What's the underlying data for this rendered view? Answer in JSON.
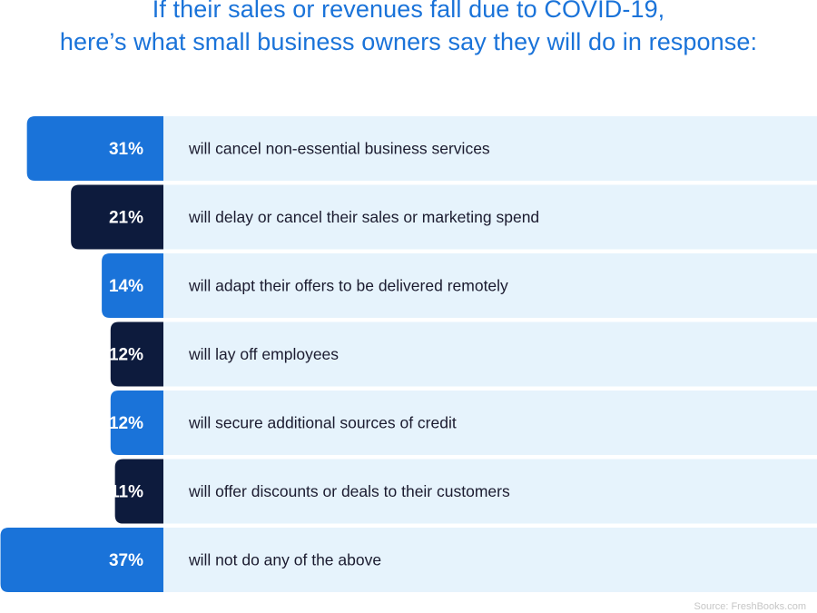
{
  "title_line1": "If their sales or revenues fall due to COVID-19,",
  "title_line2": "here’s what small business owners say they will do in response:",
  "source": "Source: FreshBooks.com",
  "colors": {
    "blue": "#1a73d9",
    "navy": "#0d1b3d",
    "row_bg": "#e6f3fc",
    "title": "#1a73d9"
  },
  "chart_data": {
    "type": "bar",
    "orientation": "horizontal",
    "value_suffix": "%",
    "categories": [
      "will cancel non-essential business services",
      "will delay or cancel their sales or marketing spend",
      "will adapt their offers to be delivered remotely",
      "will lay off employees",
      "will secure additional sources of credit",
      "will offer discounts or deals to their customers",
      "will not do any of the above"
    ],
    "values": [
      31,
      21,
      14,
      12,
      12,
      11,
      37
    ],
    "bar_colors": [
      "blue",
      "navy",
      "blue",
      "navy",
      "blue",
      "navy",
      "blue"
    ]
  }
}
